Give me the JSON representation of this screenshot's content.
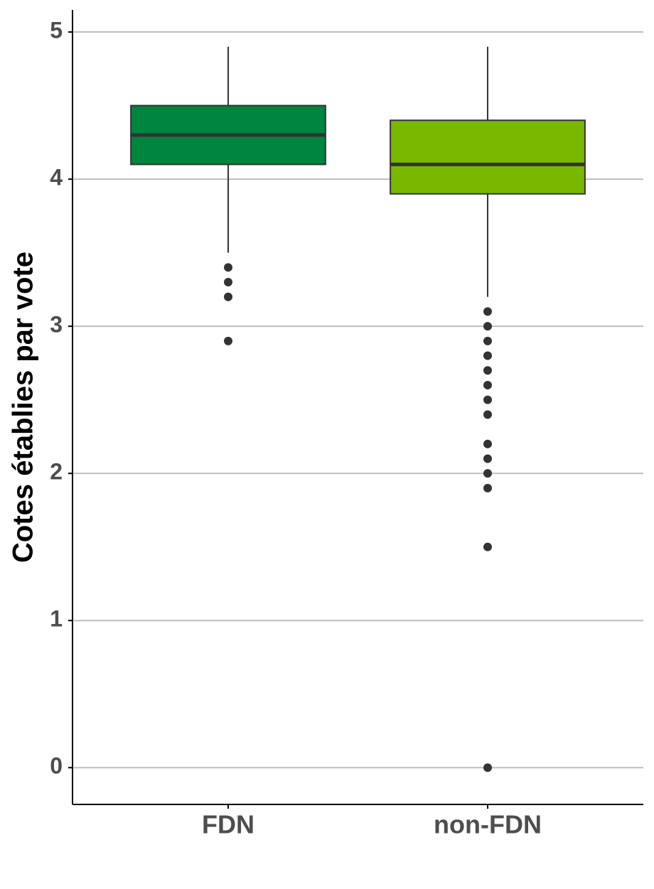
{
  "chart_data": {
    "type": "box",
    "y_label": "Cotes établies par vote",
    "categories": [
      "FDN",
      "non-FDN"
    ],
    "boxes": [
      {
        "low": 3.5,
        "q1": 4.1,
        "median": 4.3,
        "q3": 4.5,
        "high": 4.9,
        "outliers": [
          3.4,
          3.3,
          3.2,
          2.9
        ],
        "color": "#00853f"
      },
      {
        "low": 3.2,
        "q1": 3.9,
        "median": 4.1,
        "q3": 4.4,
        "high": 4.9,
        "outliers": [
          3.1,
          3.0,
          2.9,
          2.8,
          2.7,
          2.6,
          2.5,
          2.4,
          2.2,
          2.1,
          2.0,
          1.9,
          1.5,
          0
        ],
        "color": "#7ab800"
      }
    ],
    "ylim": [
      -0.25,
      5.15
    ],
    "yticks": [
      0,
      1,
      2,
      3,
      4,
      5
    ],
    "grid": true
  }
}
